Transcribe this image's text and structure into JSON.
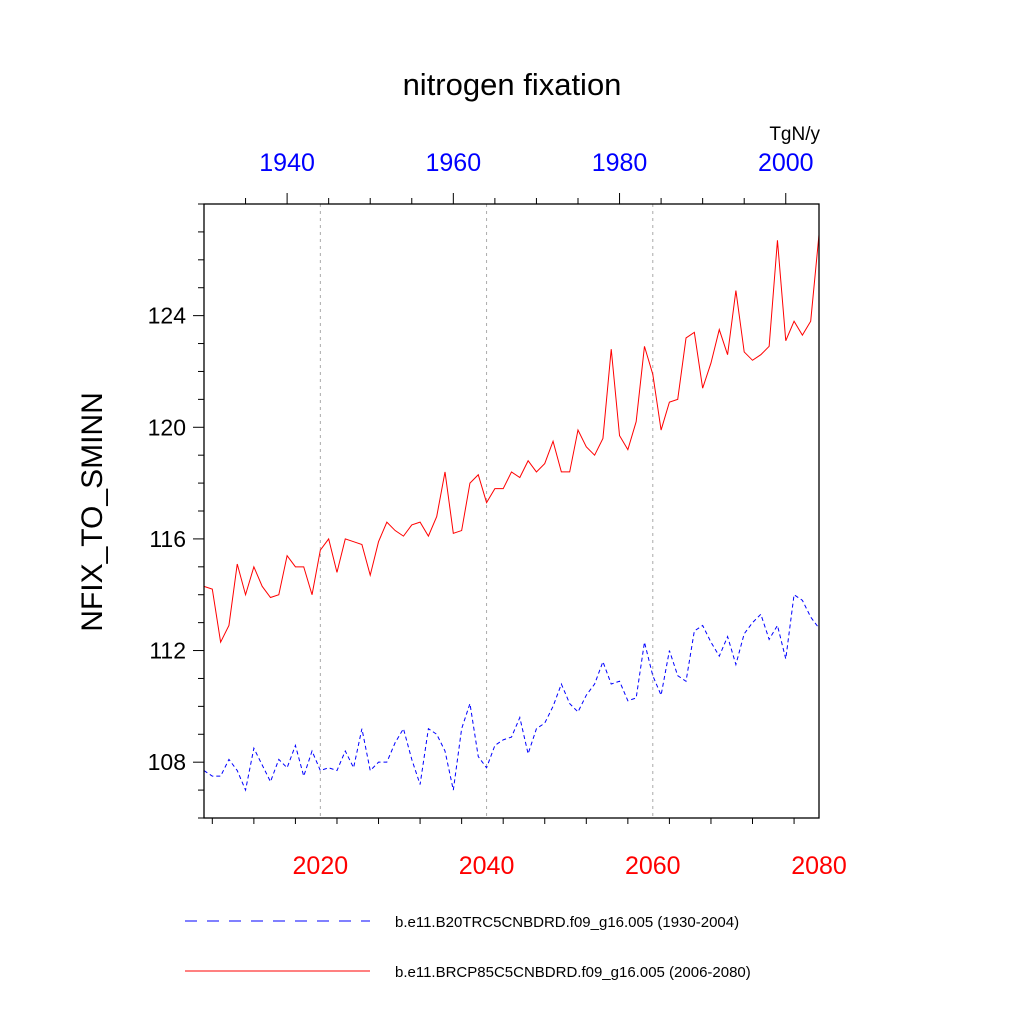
{
  "chart_data": {
    "type": "line",
    "title": "nitrogen fixation",
    "units": "TgN/y",
    "ylabel": "NFIX_TO_SMINN",
    "ylim": [
      106,
      128
    ],
    "yticks": [
      108,
      112,
      116,
      120,
      124
    ],
    "x_bottom": {
      "range": [
        2006,
        2080
      ],
      "ticks": [
        "2020",
        "2040",
        "2060",
        "2080"
      ],
      "color": "#ff0000"
    },
    "x_top": {
      "range": [
        1930,
        2004
      ],
      "ticks": [
        "1940",
        "1960",
        "1980",
        "2000"
      ],
      "color": "#0000ff"
    },
    "grid_lines_at": [
      2020,
      2040,
      2060
    ],
    "series": [
      {
        "name": "b.e11.B20TRC5CNBDRD.f09_g16.005 (1930-2004)",
        "axis": "top",
        "color": "#0000ff",
        "dash": true,
        "x_start": 1930,
        "values": [
          107.7,
          107.5,
          107.5,
          108.1,
          107.7,
          107.0,
          108.5,
          107.9,
          107.3,
          108.1,
          107.8,
          108.6,
          107.5,
          108.4,
          107.7,
          107.8,
          107.7,
          108.4,
          107.8,
          109.2,
          107.7,
          108.0,
          108.0,
          108.7,
          109.2,
          108.1,
          107.2,
          109.2,
          109.0,
          108.4,
          107.0,
          109.2,
          110.1,
          108.2,
          107.8,
          108.6,
          108.8,
          108.9,
          109.6,
          108.3,
          109.2,
          109.4,
          110.0,
          110.8,
          110.1,
          109.8,
          110.4,
          110.8,
          111.6,
          110.8,
          110.9,
          110.2,
          110.3,
          112.3,
          111.1,
          110.4,
          112.0,
          111.1,
          110.9,
          112.7,
          112.9,
          112.3,
          111.8,
          112.5,
          111.5,
          112.6,
          113.0,
          113.3,
          112.4,
          112.9,
          111.7,
          114.0,
          113.8,
          113.2,
          112.8
        ]
      },
      {
        "name": "b.e11.BRCP85C5CNBDRD.f09_g16.005 (2006-2080)",
        "axis": "bottom",
        "color": "#ff0000",
        "dash": false,
        "x_start": 2006,
        "values": [
          114.3,
          114.2,
          112.3,
          112.9,
          115.1,
          114.0,
          115.0,
          114.3,
          113.9,
          114.0,
          115.4,
          115.0,
          115.0,
          114.0,
          115.6,
          116.0,
          114.8,
          116.0,
          115.9,
          115.8,
          114.7,
          115.9,
          116.6,
          116.3,
          116.1,
          116.5,
          116.6,
          116.1,
          116.8,
          118.4,
          116.2,
          116.3,
          118.0,
          118.3,
          117.3,
          117.8,
          117.8,
          118.4,
          118.2,
          118.8,
          118.4,
          118.7,
          119.5,
          118.4,
          118.4,
          119.9,
          119.3,
          119.0,
          119.6,
          122.8,
          119.7,
          119.2,
          120.2,
          122.9,
          121.9,
          119.9,
          120.9,
          121.0,
          123.2,
          123.4,
          121.4,
          122.3,
          123.5,
          122.6,
          124.9,
          122.7,
          122.4,
          122.6,
          122.9,
          126.7,
          123.1,
          123.8,
          123.3,
          123.8,
          126.9
        ]
      }
    ]
  }
}
